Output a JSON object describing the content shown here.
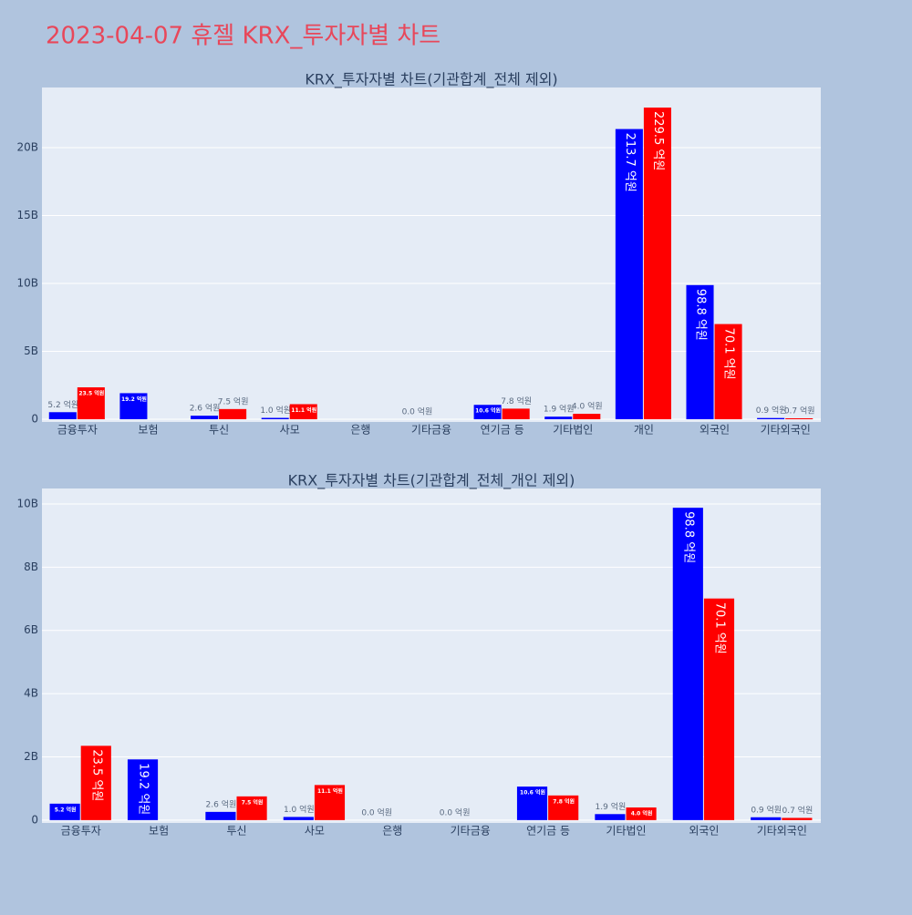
{
  "title": "2023-04-07 휴젤 KRX_투자자별 차트",
  "chart_data": [
    {
      "type": "bar",
      "title": "KRX_투자자별 차트(기관합계_전체 제외)",
      "categories": [
        "금융투자",
        "보험",
        "투신",
        "사모",
        "은행",
        "기타금융",
        "연기금 등",
        "기타법인",
        "개인",
        "외국인",
        "기타외국인"
      ],
      "series": [
        {
          "color": "#0000ff",
          "values": [
            520000000,
            1920000000,
            260000000,
            100000000,
            null,
            0,
            1060000000,
            190000000,
            21370000000,
            9880000000,
            90000000
          ],
          "value_labels": [
            "5.2 억원",
            "19.2 억원",
            "2.6 억원",
            "1.0 억원",
            null,
            "0.0 억원",
            "10.6 억원",
            "1.9 억원",
            "213.7 억원",
            "98.8 억원",
            "0.9 억원"
          ]
        },
        {
          "color": "#ff0000",
          "values": [
            2350000000,
            null,
            750000000,
            1110000000,
            null,
            null,
            780000000,
            400000000,
            22950000000,
            7010000000,
            70000000
          ],
          "value_labels": [
            "23.5 억원",
            null,
            "7.5 억원",
            "11.1 억원",
            null,
            null,
            "7.8 억원",
            "4.0 억원",
            "229.5 억원",
            "70.1 억원",
            "0.7 억원"
          ]
        }
      ],
      "ylim": [
        -200000000,
        24430000000
      ],
      "yticks": [
        0,
        {
          "value": 5000000000,
          "label": "5B"
        },
        {
          "value": 10000000000,
          "label": "10B"
        },
        {
          "value": 15000000000,
          "label": "15B"
        },
        {
          "value": 20000000000,
          "label": "20B"
        }
      ],
      "grid": true
    },
    {
      "type": "bar",
      "title": "KRX_투자자별 차트(기관합계_전체_개인 제외)",
      "categories": [
        "금융투자",
        "보험",
        "투신",
        "사모",
        "은행",
        "기타금융",
        "연기금 등",
        "기타법인",
        "외국인",
        "기타외국인"
      ],
      "series": [
        {
          "color": "#0000ff",
          "values": [
            520000000,
            1920000000,
            260000000,
            100000000,
            0,
            0,
            1060000000,
            190000000,
            9880000000,
            90000000
          ],
          "value_labels": [
            "5.2 억원",
            "19.2 억원",
            "2.6 억원",
            "1.0 억원",
            "0.0 억원",
            "0.0 억원",
            "10.6 억원",
            "1.9 억원",
            "98.8 억원",
            "0.9 억원"
          ]
        },
        {
          "color": "#ff0000",
          "values": [
            2350000000,
            null,
            750000000,
            1110000000,
            null,
            null,
            780000000,
            400000000,
            7010000000,
            70000000
          ],
          "value_labels": [
            "23.5 억원",
            null,
            "7.5 억원",
            "11.1 억원",
            null,
            null,
            "7.8 억원",
            "4.0 억원",
            "70.1 억원",
            "0.7 억원"
          ]
        }
      ],
      "ylim": [
        -90000000,
        10490000000
      ],
      "yticks": [
        0,
        {
          "value": 2000000000,
          "label": "2B"
        },
        {
          "value": 4000000000,
          "label": "4B"
        },
        {
          "value": 6000000000,
          "label": "6B"
        },
        {
          "value": 8000000000,
          "label": "8B"
        },
        {
          "value": 10000000000,
          "label": "10B"
        }
      ],
      "grid": true
    }
  ]
}
